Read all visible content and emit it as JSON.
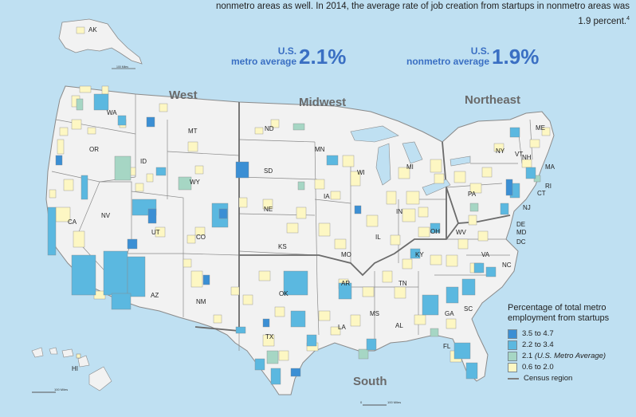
{
  "intro": {
    "line1": "nonmetro areas as well. In 2014, the average rate of job creation from startups in nonmetro areas was",
    "line2": "1.9 percent.",
    "footnote": "4"
  },
  "averages": {
    "metro": {
      "prefix": "U.S.",
      "label": "metro average",
      "value": "2.1%"
    },
    "nonmetro": {
      "prefix": "U.S.",
      "label": "nonmetro average",
      "value": "1.9%"
    }
  },
  "regions": [
    "West",
    "Midwest",
    "Northeast",
    "South"
  ],
  "states": [
    "AK",
    "WA",
    "MT",
    "ND",
    "MN",
    "OR",
    "ID",
    "SD",
    "WI",
    "MI",
    "ME",
    "NY",
    "VT",
    "NH",
    "MA",
    "RI",
    "CT",
    "WY",
    "IA",
    "PA",
    "NJ",
    "NE",
    "IN",
    "OH",
    "CA",
    "NV",
    "UT",
    "CO",
    "IL",
    "DE",
    "MD",
    "DC",
    "WV",
    "KS",
    "MO",
    "KY",
    "VA",
    "NC",
    "TN",
    "AR",
    "OK",
    "AZ",
    "NM",
    "SC",
    "GA",
    "MS",
    "AL",
    "LA",
    "TX",
    "FL",
    "HI"
  ],
  "scales": {
    "main": "100 Miles",
    "alaska": "100 Miles",
    "hawaii": "100 Miles"
  },
  "legend": {
    "title": "Percentage of total metro employment from startups",
    "items": [
      {
        "label": "3.5 to 4.7",
        "color": "#3b8fd4"
      },
      {
        "label": "2.2 to 3.4",
        "color": "#5bb8e0"
      },
      {
        "label": "2.1",
        "note": "(U.S. Metro Average)",
        "color": "#a6d6c4"
      },
      {
        "label": "0.6 to 2.0",
        "color": "#fdf7c3"
      }
    ],
    "census": "Census region"
  },
  "colors": {
    "ocean": "#bfe0f2",
    "land": "#f2f2f2",
    "state_border": "#8a8a8a",
    "region_border": "#6b6b6b",
    "accent": "#3a6fc3"
  }
}
